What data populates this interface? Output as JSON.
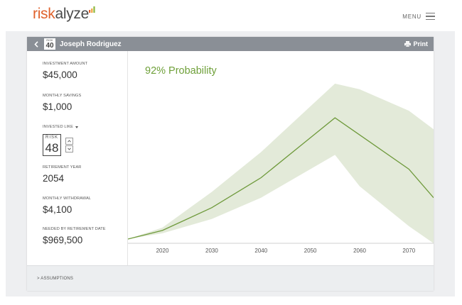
{
  "brand": {
    "name_part1": "risk",
    "name_part2": "alyze",
    "accent": "#e0622c"
  },
  "header": {
    "menu_label": "MENU"
  },
  "client": {
    "risk_label": "RISK",
    "risk_score": "40",
    "name": "Joseph Rodriguez",
    "print_label": "Print"
  },
  "sidebar": {
    "investment_amount": {
      "label": "INVESTMENT AMOUNT",
      "value": "$45,000"
    },
    "monthly_savings": {
      "label": "MONTHLY SAVINGS",
      "value": "$1,000"
    },
    "invested_like": {
      "label": "INVESTED LIKE",
      "risk_label": "RISK",
      "risk_value": "48"
    },
    "retirement_year": {
      "label": "RETIREMENT YEAR",
      "value": "2054"
    },
    "monthly_withdrawal": {
      "label": "MONTHLY WITHDRAWAL",
      "value": "$4,100"
    },
    "needed_by_retirement": {
      "label": "NEEDED BY RETIREMENT DATE",
      "value": "$969,500"
    }
  },
  "chart": {
    "probability_text": "92% Probability",
    "line_color": "#6f9a3c",
    "band_color": "#e3ead9"
  },
  "chart_data": {
    "type": "area",
    "title": "",
    "xlabel": "",
    "ylabel": "",
    "x_ticks": [
      "2020",
      "2030",
      "2040",
      "2050",
      "2060",
      "2070"
    ],
    "xlim": [
      2013,
      2075
    ],
    "ylim": [
      0,
      100
    ],
    "series": [
      {
        "values": [
          [
            2013,
            3
          ],
          [
            2020,
            9
          ],
          [
            2030,
            25
          ],
          [
            2040,
            46
          ],
          [
            2050,
            74
          ],
          [
            2055,
            88
          ],
          [
            2060,
            76
          ],
          [
            2070,
            52
          ],
          [
            2075,
            32
          ]
        ]
      },
      {
        "values": [
          [
            2013,
            3
          ],
          [
            2020,
            11
          ],
          [
            2030,
            36
          ],
          [
            2040,
            64
          ],
          [
            2050,
            96
          ],
          [
            2055,
            112
          ],
          [
            2060,
            108
          ],
          [
            2070,
            93
          ],
          [
            2075,
            80
          ]
        ]
      },
      {
        "values": [
          [
            2013,
            3
          ],
          [
            2020,
            7
          ],
          [
            2030,
            17
          ],
          [
            2040,
            32
          ],
          [
            2050,
            52
          ],
          [
            2055,
            62
          ],
          [
            2060,
            40
          ],
          [
            2070,
            12
          ],
          [
            2075,
            0
          ]
        ]
      }
    ],
    "grid": false,
    "legend": "none"
  },
  "footer": {
    "assumptions_label": "> ASSUMPTIONS"
  }
}
